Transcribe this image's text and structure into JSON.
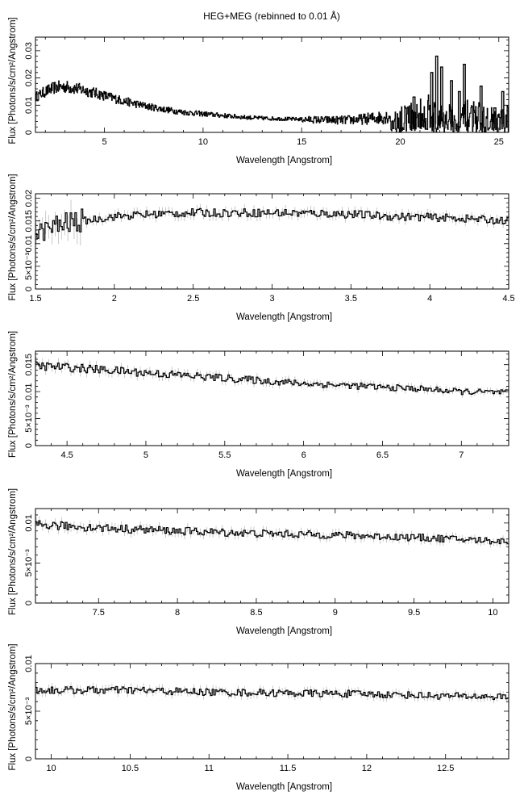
{
  "figure": {
    "title": "HEG+MEG (rebinned to 0.01 Å)"
  },
  "chart_data": [
    {
      "type": "line",
      "xlabel": "Wavelength [Angstrom]",
      "ylabel": "Flux [Photons/s/cm²/Angstrom]",
      "xlim": [
        1.5,
        25.5
      ],
      "ylim": [
        0,
        0.035
      ],
      "xticks": [
        5,
        10,
        15,
        20,
        25
      ],
      "xtick_labels": [
        "5",
        "10",
        "15",
        "20",
        "25"
      ],
      "yticks": [
        0,
        0.01,
        0.02,
        0.03
      ],
      "ytick_labels": [
        "0",
        "0.01",
        "0.02",
        "0.03"
      ],
      "grid": false,
      "series": [
        {
          "x": [
            1.5,
            2.0,
            2.5,
            3.0,
            3.5,
            4.0,
            5.0,
            6.0,
            7.0,
            8.0,
            9.0,
            10.0,
            11.0,
            12.0,
            13.0,
            14.0,
            15.0,
            16.0,
            17.0,
            18.0,
            19.0,
            20.0,
            21.0,
            21.5,
            22.0,
            22.5,
            23.0,
            23.5,
            24.0,
            24.5,
            25.0,
            25.5
          ],
          "y": [
            0.013,
            0.015,
            0.0165,
            0.0168,
            0.0162,
            0.0155,
            0.0135,
            0.0115,
            0.0098,
            0.0085,
            0.0074,
            0.0068,
            0.0062,
            0.0056,
            0.0052,
            0.005,
            0.0048,
            0.0046,
            0.0045,
            0.0048,
            0.0055,
            0.0065,
            0.008,
            0.009,
            0.006,
            0.007,
            0.005,
            0.008,
            0.0065,
            0.006,
            0.005,
            0.006
          ]
        }
      ],
      "spikes": [
        {
          "x": 21.6,
          "y": 0.022
        },
        {
          "x": 21.85,
          "y": 0.028
        },
        {
          "x": 22.1,
          "y": 0.024
        },
        {
          "x": 23.0,
          "y": 0.015
        },
        {
          "x": 23.25,
          "y": 0.025
        },
        {
          "x": 24.1,
          "y": 0.017
        },
        {
          "x": 24.8,
          "y": 0.009
        },
        {
          "x": 25.2,
          "y": 0.015
        },
        {
          "x": 22.6,
          "y": 0.019
        },
        {
          "x": 20.7,
          "y": 0.013
        }
      ]
    },
    {
      "type": "line",
      "xlabel": "Wavelength [Angstrom]",
      "ylabel": "Flux [Photons/s/cm²/Angstrom]",
      "xlim": [
        1.5,
        4.5
      ],
      "ylim": [
        0,
        0.021
      ],
      "xticks": [
        1.5,
        2,
        2.5,
        3,
        3.5,
        4,
        4.5
      ],
      "xtick_labels": [
        "1.5",
        "2",
        "2.5",
        "3",
        "3.5",
        "4",
        "4.5"
      ],
      "yticks": [
        0,
        0.005,
        0.01,
        0.015,
        0.02
      ],
      "ytick_labels": [
        "0",
        "5×10⁻³",
        "0.01",
        "0.015",
        "0.02"
      ],
      "grid": false,
      "series": [
        {
          "x": [
            1.5,
            1.6,
            1.7,
            1.8,
            1.9,
            2.0,
            2.25,
            2.5,
            2.75,
            3.0,
            3.25,
            3.5,
            3.75,
            4.0,
            4.25,
            4.5
          ],
          "y": [
            0.012,
            0.0135,
            0.0145,
            0.015,
            0.0155,
            0.016,
            0.0165,
            0.0168,
            0.0168,
            0.0168,
            0.0167,
            0.0165,
            0.016,
            0.0158,
            0.0155,
            0.015
          ]
        }
      ]
    },
    {
      "type": "line",
      "xlabel": "Wavelength [Angstrom]",
      "ylabel": "Flux [Photons/s/cm²/Angstrom]",
      "xlim": [
        4.3,
        7.3
      ],
      "ylim": [
        0,
        0.0175
      ],
      "xticks": [
        4.5,
        5,
        5.5,
        6,
        6.5,
        7
      ],
      "xtick_labels": [
        "4.5",
        "5",
        "5.5",
        "6",
        "6.5",
        "7"
      ],
      "yticks": [
        0,
        0.005,
        0.01,
        0.015
      ],
      "ytick_labels": [
        "0",
        "5×10⁻³",
        "0.01",
        "0.015"
      ],
      "grid": false,
      "series": [
        {
          "x": [
            4.3,
            4.5,
            4.75,
            5.0,
            5.25,
            5.5,
            5.75,
            6.0,
            6.25,
            6.5,
            6.75,
            7.0,
            7.3
          ],
          "y": [
            0.0148,
            0.0145,
            0.014,
            0.0135,
            0.013,
            0.0125,
            0.012,
            0.0115,
            0.0112,
            0.0108,
            0.0105,
            0.01,
            0.0098
          ]
        }
      ]
    },
    {
      "type": "line",
      "xlabel": "Wavelength [Angstrom]",
      "ylabel": "Flux [Photons/s/cm²/Angstrom]",
      "xlim": [
        7.1,
        10.1
      ],
      "ylim": [
        0,
        0.0118
      ],
      "xticks": [
        7.5,
        8,
        8.5,
        9,
        9.5,
        10
      ],
      "xtick_labels": [
        "7.5",
        "8",
        "8.5",
        "9",
        "9.5",
        "10"
      ],
      "yticks": [
        0,
        0.005,
        0.01
      ],
      "ytick_labels": [
        "0",
        "5×10⁻³",
        "0.01"
      ],
      "grid": false,
      "series": [
        {
          "x": [
            7.1,
            7.5,
            8.0,
            8.5,
            9.0,
            9.5,
            10.1
          ],
          "y": [
            0.0098,
            0.0094,
            0.009,
            0.0087,
            0.0085,
            0.0082,
            0.0077
          ]
        }
      ]
    },
    {
      "type": "line",
      "xlabel": "Wavelength [Angstrom]",
      "ylabel": "Flux [Photons/s/cm²/Angstrom]",
      "xlim": [
        9.9,
        12.9
      ],
      "ylim": [
        0,
        0.01
      ],
      "xticks": [
        10,
        10.5,
        11,
        11.5,
        12,
        12.5
      ],
      "xtick_labels": [
        "10",
        "10.5",
        "11",
        "11.5",
        "12",
        "12.5"
      ],
      "yticks": [
        0,
        0.005,
        0.01
      ],
      "ytick_labels": [
        "0",
        "5×10⁻³",
        "0.01"
      ],
      "grid": false,
      "series": [
        {
          "x": [
            9.9,
            10.5,
            11.0,
            11.5,
            12.0,
            12.5,
            12.9
          ],
          "y": [
            0.0072,
            0.0072,
            0.007,
            0.0069,
            0.0068,
            0.0066,
            0.0065
          ]
        }
      ]
    }
  ]
}
